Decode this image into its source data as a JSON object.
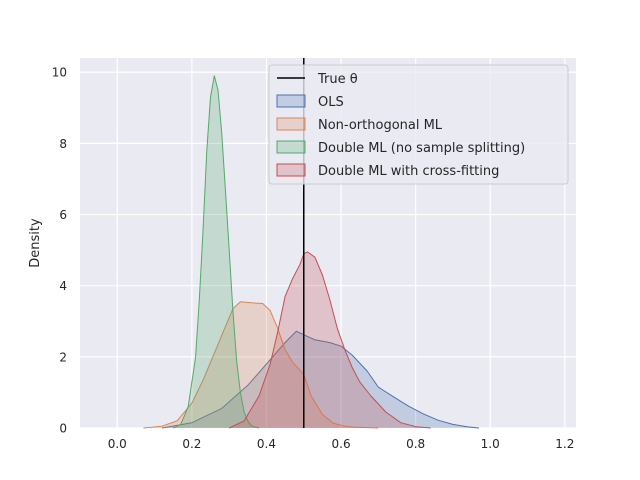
{
  "chart_data": {
    "type": "area",
    "title": "",
    "xlabel": "",
    "ylabel": "Density",
    "xlim": [
      -0.1,
      1.23
    ],
    "ylim": [
      0,
      10.4
    ],
    "xticks": [
      0.0,
      0.2,
      0.4,
      0.6,
      0.8,
      1.0,
      1.2
    ],
    "xtick_labels": [
      "0.0",
      "0.2",
      "0.4",
      "0.6",
      "0.8",
      "1.0",
      "1.2"
    ],
    "yticks": [
      0,
      2,
      4,
      6,
      8,
      10
    ],
    "ytick_labels": [
      "0",
      "2",
      "4",
      "6",
      "8",
      "10"
    ],
    "grid": true,
    "legend_position": "top-right",
    "true_theta": {
      "name": "True θ",
      "x": 0.5,
      "color": "#000000"
    },
    "series": [
      {
        "name": "OLS",
        "color": "#4c72b0",
        "x": [
          0.12,
          0.2,
          0.28,
          0.35,
          0.4,
          0.45,
          0.48,
          0.5,
          0.53,
          0.57,
          0.6,
          0.63,
          0.67,
          0.7,
          0.74,
          0.78,
          0.82,
          0.86,
          0.9,
          0.94,
          0.97
        ],
        "y": [
          0.0,
          0.15,
          0.55,
          1.2,
          1.8,
          2.4,
          2.72,
          2.62,
          2.48,
          2.4,
          2.3,
          2.05,
          1.6,
          1.15,
          0.88,
          0.62,
          0.4,
          0.22,
          0.1,
          0.03,
          0.0
        ]
      },
      {
        "name": "Non-orthogonal ML",
        "color": "#dd8452",
        "x": [
          0.07,
          0.12,
          0.16,
          0.2,
          0.23,
          0.26,
          0.29,
          0.31,
          0.33,
          0.36,
          0.39,
          0.41,
          0.43,
          0.45,
          0.47,
          0.5,
          0.52,
          0.55,
          0.58,
          0.61,
          0.64,
          0.7
        ],
        "y": [
          0.0,
          0.05,
          0.2,
          0.7,
          1.35,
          2.1,
          2.85,
          3.35,
          3.55,
          3.52,
          3.5,
          3.3,
          2.8,
          2.2,
          1.85,
          1.5,
          0.9,
          0.38,
          0.13,
          0.05,
          0.02,
          0.0
        ]
      },
      {
        "name": "Double ML (no sample splitting)",
        "color": "#55a868",
        "x": [
          0.15,
          0.17,
          0.19,
          0.21,
          0.22,
          0.23,
          0.24,
          0.25,
          0.26,
          0.27,
          0.28,
          0.29,
          0.3,
          0.31,
          0.32,
          0.33,
          0.34,
          0.35,
          0.36,
          0.38
        ],
        "y": [
          0.0,
          0.1,
          0.6,
          2.0,
          3.6,
          5.6,
          7.8,
          9.3,
          9.9,
          9.5,
          8.3,
          6.7,
          5.0,
          3.3,
          1.9,
          1.0,
          0.45,
          0.2,
          0.06,
          0.0
        ]
      },
      {
        "name": "Double ML with cross-fitting",
        "color": "#c44e52",
        "x": [
          0.3,
          0.34,
          0.38,
          0.41,
          0.43,
          0.45,
          0.47,
          0.49,
          0.5,
          0.51,
          0.53,
          0.55,
          0.57,
          0.59,
          0.61,
          0.63,
          0.65,
          0.68,
          0.72,
          0.76,
          0.8,
          0.84
        ],
        "y": [
          0.0,
          0.2,
          0.9,
          1.8,
          2.7,
          3.7,
          4.2,
          4.6,
          4.9,
          4.95,
          4.8,
          4.3,
          3.6,
          2.8,
          2.2,
          1.7,
          1.3,
          0.9,
          0.45,
          0.15,
          0.04,
          0.0
        ]
      }
    ]
  }
}
